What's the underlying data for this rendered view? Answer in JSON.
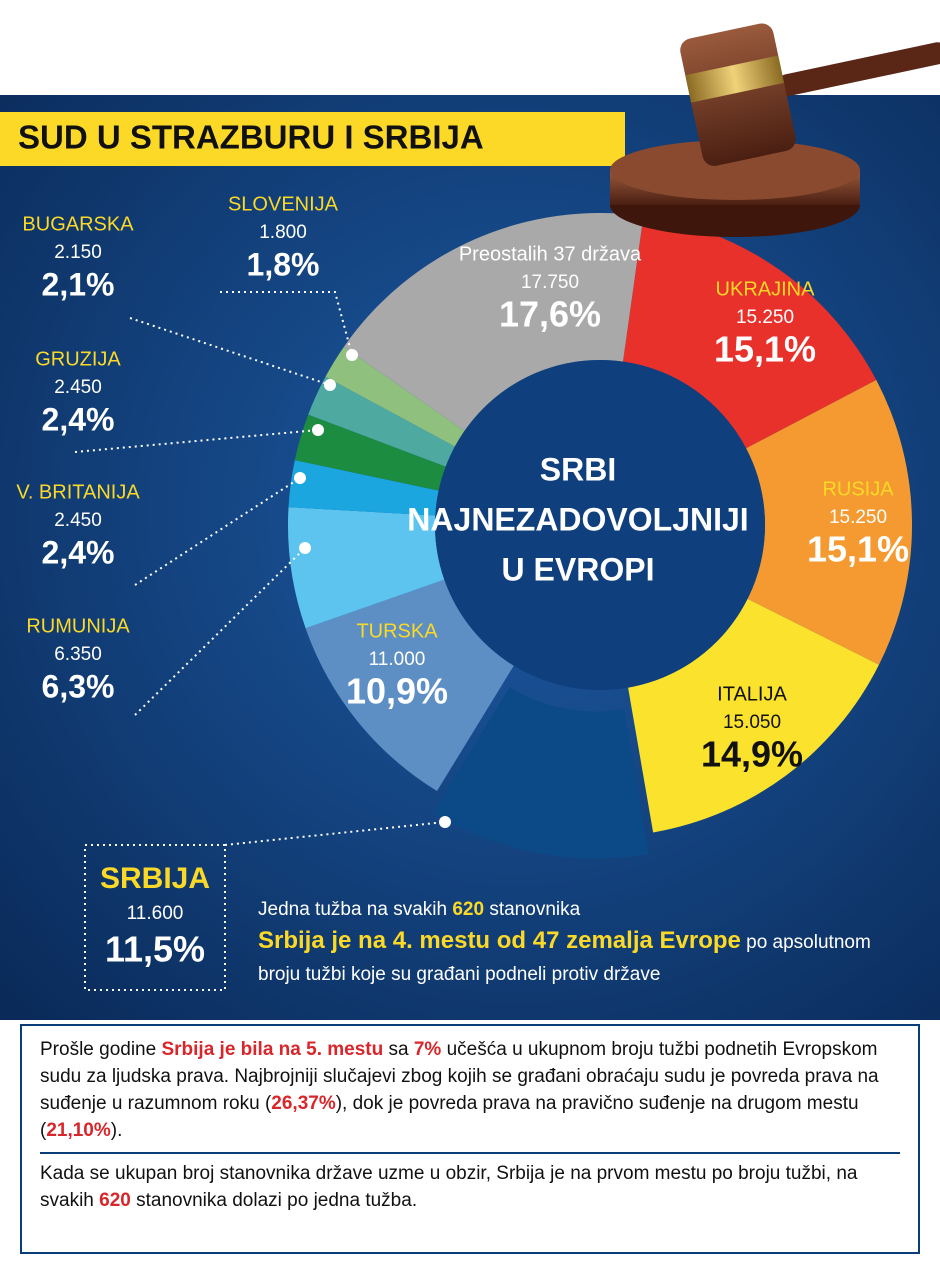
{
  "chart_data": {
    "type": "donut",
    "title": "SUD U STRAZBURU I SRBIJA",
    "center_text": [
      "SRBI",
      "NAJNEZADOVOLJNIJI",
      "U EVROPI"
    ],
    "categories": [
      "UKRAJINA",
      "RUSIJA",
      "ITALIJA",
      "SRBIJA",
      "TURSKA",
      "RUMUNIJA",
      "V. BRITANIJA",
      "GRUZIJA",
      "BUGARSKA",
      "SLOVENIJA",
      "Preostalih 37 država"
    ],
    "values": [
      15250,
      15250,
      15050,
      11600,
      11000,
      6350,
      2450,
      2450,
      2150,
      1800,
      17750
    ],
    "value_labels": [
      "15.250",
      "15.250",
      "15.050",
      "11.600",
      "11.000",
      "6.350",
      "2.450",
      "2.450",
      "2.150",
      "1.800",
      "17.750"
    ],
    "percents": [
      15.1,
      15.1,
      14.9,
      11.5,
      10.9,
      6.3,
      2.4,
      2.4,
      2.1,
      1.8,
      17.6
    ],
    "percent_labels": [
      "15,1%",
      "15,1%",
      "14,9%",
      "11,5%",
      "10,9%",
      "6,3%",
      "2,4%",
      "2,4%",
      "2,1%",
      "1,8%",
      "17,6%"
    ],
    "colors": [
      "#e8312b",
      "#f49a31",
      "#fbe22c",
      "#0b4a86",
      "#5e8fc4",
      "#5cc4ef",
      "#1ba6e0",
      "#1b8c40",
      "#4ea9a1",
      "#8fc07e",
      "#a9a9a9"
    ]
  },
  "summary": [
    [
      {
        "text": "Jedna tužba na svakih "
      },
      {
        "text": "620",
        "highlight": true
      },
      {
        "text": " stanovnika"
      }
    ],
    [
      {
        "text": "Srbija je na 4. mestu od 47 zemalja Evrope",
        "highlight": true
      },
      {
        "text": " po apsolutnom broju tužbi koje su građani podneli protiv države"
      }
    ]
  ],
  "notes": [
    [
      {
        "text": "Prošle godine "
      },
      {
        "text": "Srbija je bila na 5. mestu",
        "highlight": true
      },
      {
        "text": " sa "
      },
      {
        "text": "7%",
        "highlight": true
      },
      {
        "text": " učešća u ukupnom broju tužbi podnetih Evropskom sudu za ljudska prava. Najbrojniji slučajevi zbog kojih se građani obraćaju sudu je povreda prava na suđenje u razumnom roku ("
      },
      {
        "text": "26,37%",
        "highlight": true
      },
      {
        "text": "), dok je povreda prava na pravično suđenje na drugom mestu ("
      },
      {
        "text": "21,10%",
        "highlight": true
      },
      {
        "text": ")."
      }
    ],
    [
      {
        "text": "Kada se ukupan broj stanovnika države uzme u obzir, Srbija je na prvom mestu po broju tužbi, na svakih "
      },
      {
        "text": "620",
        "highlight": true
      },
      {
        "text": " stanovnika dolazi po jedna tužba."
      }
    ]
  ]
}
